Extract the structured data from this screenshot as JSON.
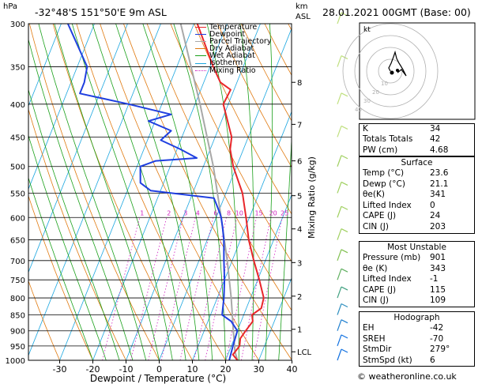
{
  "header": {
    "location": "-32°48'S  151°50'E  9m  ASL",
    "datetime": "28.01.2021  00GMT  (Base: 00)",
    "hpa_label": "hPa",
    "km_label": "km",
    "asl_label": "ASL"
  },
  "legend": [
    {
      "label": "Temperature",
      "color": "#e8262a"
    },
    {
      "label": "Dewpoint",
      "color": "#1f3fe0"
    },
    {
      "label": "Parcel Trajectory",
      "color": "#a8a8a8"
    },
    {
      "label": "Dry Adiabat",
      "color": "#e07a10"
    },
    {
      "label": "Wet Adiabat",
      "color": "#1aa01a"
    },
    {
      "label": "Isotherm",
      "color": "#1ba6e0"
    },
    {
      "label": "Mixing Ratio",
      "color": "#d020c0"
    }
  ],
  "chart_data": {
    "type": "skew-t",
    "xlabel": "Dewpoint / Temperature (°C)",
    "ylabel_right": "Mixing Ratio (g/kg)",
    "pressure_levels": [
      300,
      350,
      400,
      450,
      500,
      550,
      600,
      650,
      700,
      750,
      800,
      850,
      900,
      950,
      1000
    ],
    "temperature_ticks": [
      -30,
      -20,
      -10,
      0,
      10,
      20,
      30,
      40
    ],
    "km_ticks": [
      {
        "label": "8",
        "p": 370
      },
      {
        "label": "7",
        "p": 430
      },
      {
        "label": "6",
        "p": 490
      },
      {
        "label": "5",
        "p": 555
      },
      {
        "label": "4",
        "p": 625
      },
      {
        "label": "3",
        "p": 705
      },
      {
        "label": "2",
        "p": 795
      },
      {
        "label": "1",
        "p": 895
      },
      {
        "label": "LCL",
        "p": 970
      }
    ],
    "mixing_ratio_labels": [
      "1",
      "2",
      "3",
      "4",
      "6",
      "8",
      "10",
      "15",
      "20",
      "25"
    ],
    "temperature_profile": [
      {
        "p": 1000,
        "t": 23.6
      },
      {
        "p": 980,
        "t": 21.5
      },
      {
        "p": 950,
        "t": 22.5
      },
      {
        "p": 925,
        "t": 21.8
      },
      {
        "p": 900,
        "t": 22.5
      },
      {
        "p": 870,
        "t": 23.5
      },
      {
        "p": 850,
        "t": 22.5
      },
      {
        "p": 830,
        "t": 24.5
      },
      {
        "p": 800,
        "t": 24.0
      },
      {
        "p": 750,
        "t": 20.5
      },
      {
        "p": 700,
        "t": 16.5
      },
      {
        "p": 650,
        "t": 12.5
      },
      {
        "p": 600,
        "t": 9.0
      },
      {
        "p": 550,
        "t": 5.0
      },
      {
        "p": 500,
        "t": -1.0
      },
      {
        "p": 470,
        "t": -4.0
      },
      {
        "p": 450,
        "t": -5.0
      },
      {
        "p": 400,
        "t": -11.5
      },
      {
        "p": 380,
        "t": -11.0
      },
      {
        "p": 370,
        "t": -15.0
      },
      {
        "p": 350,
        "t": -19.0
      },
      {
        "p": 300,
        "t": -29.0
      }
    ],
    "dewpoint_profile": [
      {
        "p": 1000,
        "t": 21.1
      },
      {
        "p": 950,
        "t": 20.5
      },
      {
        "p": 900,
        "t": 20.0
      },
      {
        "p": 870,
        "t": 17.0
      },
      {
        "p": 850,
        "t": 13.5
      },
      {
        "p": 800,
        "t": 12.0
      },
      {
        "p": 750,
        "t": 10.0
      },
      {
        "p": 700,
        "t": 7.5
      },
      {
        "p": 650,
        "t": 5.0
      },
      {
        "p": 620,
        "t": 3.0
      },
      {
        "p": 600,
        "t": 1.5
      },
      {
        "p": 590,
        "t": 0.5
      },
      {
        "p": 560,
        "t": -3.0
      },
      {
        "p": 545,
        "t": -23.0
      },
      {
        "p": 530,
        "t": -27.0
      },
      {
        "p": 500,
        "t": -29.0
      },
      {
        "p": 490,
        "t": -25.0
      },
      {
        "p": 485,
        "t": -13.0
      },
      {
        "p": 470,
        "t": -19.0
      },
      {
        "p": 455,
        "t": -26.0
      },
      {
        "p": 440,
        "t": -24.0
      },
      {
        "p": 425,
        "t": -32.0
      },
      {
        "p": 415,
        "t": -26.0
      },
      {
        "p": 400,
        "t": -40.0
      },
      {
        "p": 385,
        "t": -56.0
      },
      {
        "p": 370,
        "t": -56.0
      },
      {
        "p": 350,
        "t": -57.0
      },
      {
        "p": 300,
        "t": -68.0
      }
    ],
    "parcel_profile": [
      {
        "p": 1000,
        "t": 23.6
      },
      {
        "p": 970,
        "t": 21.8
      },
      {
        "p": 900,
        "t": 18.8
      },
      {
        "p": 800,
        "t": 14.2
      },
      {
        "p": 700,
        "t": 8.5
      },
      {
        "p": 600,
        "t": 1.5
      },
      {
        "p": 500,
        "t": -7.0
      },
      {
        "p": 400,
        "t": -18.5
      },
      {
        "p": 300,
        "t": -34.0
      }
    ],
    "temperature_range": [
      -40,
      40
    ],
    "pressure_range": [
      300,
      1000
    ]
  },
  "hodograph": {
    "label": "kt",
    "rings": [
      "10",
      "20",
      "30",
      "40"
    ]
  },
  "indices": [
    {
      "name": "K",
      "value": "34"
    },
    {
      "name": "Totals Totals",
      "value": "42"
    },
    {
      "name": "PW (cm)",
      "value": "4.68"
    }
  ],
  "surface": {
    "title": "Surface",
    "rows": [
      {
        "name": "Temp (°C)",
        "value": "23.6"
      },
      {
        "name": "Dewp (°C)",
        "value": "21.1"
      },
      {
        "name": "θe(K)",
        "value": "341"
      },
      {
        "name": "Lifted Index",
        "value": "0"
      },
      {
        "name": "CAPE (J)",
        "value": "24"
      },
      {
        "name": "CIN (J)",
        "value": "203"
      }
    ]
  },
  "most_unstable": {
    "title": "Most Unstable",
    "rows": [
      {
        "name": "Pressure (mb)",
        "value": "901"
      },
      {
        "name": "θe (K)",
        "value": "343"
      },
      {
        "name": "Lifted Index",
        "value": "-1"
      },
      {
        "name": "CAPE (J)",
        "value": "115"
      },
      {
        "name": "CIN (J)",
        "value": "109"
      }
    ]
  },
  "hodograph_table": {
    "title": "Hodograph",
    "rows": [
      {
        "name": "EH",
        "value": "-42"
      },
      {
        "name": "SREH",
        "value": "-70"
      },
      {
        "name": "StmDir",
        "value": "279°"
      },
      {
        "name": "StmSpd (kt)",
        "value": "6"
      }
    ]
  },
  "footer": {
    "copyright": "© weatheronline.co.uk"
  }
}
